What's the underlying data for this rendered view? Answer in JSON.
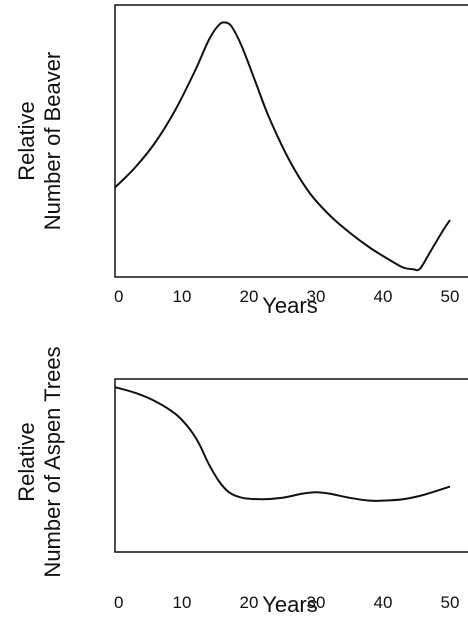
{
  "chart_data": [
    {
      "type": "line",
      "ylabel_line1": "Relative",
      "ylabel_line2": "Number of Beaver",
      "xlabel": "Years",
      "x_ticks": [
        "0",
        "10",
        "20",
        "30",
        "40",
        "50"
      ],
      "xlim": [
        0,
        50
      ],
      "ylim": [
        0,
        1
      ],
      "y_ticks_shown": false,
      "grid": false,
      "series": [
        {
          "x": [
            0,
            3,
            6,
            9,
            12,
            14,
            15.5,
            16.5,
            17.5,
            19,
            21,
            23,
            26,
            29,
            32,
            35,
            38,
            41,
            43,
            44.5,
            45.5,
            47,
            49,
            50
          ],
          "values": [
            0.33,
            0.41,
            0.51,
            0.64,
            0.8,
            0.92,
            0.98,
            0.99,
            0.97,
            0.89,
            0.75,
            0.61,
            0.44,
            0.31,
            0.22,
            0.15,
            0.09,
            0.04,
            0.01,
            0.003,
            0.005,
            0.07,
            0.16,
            0.2
          ]
        }
      ]
    },
    {
      "type": "line",
      "ylabel_line1": "Relative",
      "ylabel_line2": "Number of Aspen Trees",
      "xlabel": "Years",
      "x_ticks": [
        "0",
        "10",
        "20",
        "30",
        "40",
        "50"
      ],
      "xlim": [
        0,
        50
      ],
      "ylim": [
        0,
        1
      ],
      "y_ticks_shown": false,
      "grid": false,
      "series": [
        {
          "x": [
            0,
            3,
            6,
            9,
            11,
            12.5,
            14,
            15.5,
            17,
            19,
            22,
            25,
            28,
            30,
            32,
            35,
            38,
            40,
            43,
            46,
            50
          ],
          "values": [
            0.97,
            0.93,
            0.87,
            0.78,
            0.68,
            0.57,
            0.42,
            0.3,
            0.22,
            0.18,
            0.17,
            0.18,
            0.21,
            0.22,
            0.21,
            0.18,
            0.16,
            0.16,
            0.17,
            0.2,
            0.26
          ]
        }
      ]
    }
  ]
}
